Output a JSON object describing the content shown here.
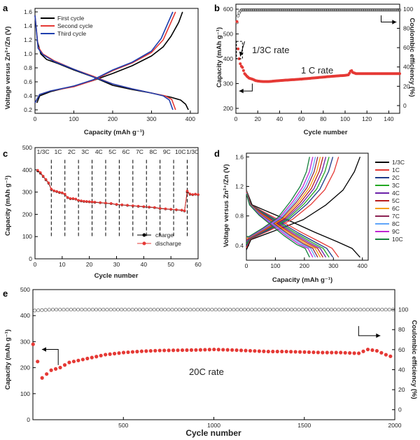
{
  "chart_data": [
    {
      "id": "a",
      "panel_letter": "a",
      "type": "line",
      "xlabel": "Capacity (mAh g⁻¹)",
      "ylabel": "Voltage versus Zn²⁺/Zn (V)",
      "xlim": [
        0,
        420
      ],
      "ylim": [
        0.15,
        1.65
      ],
      "xticks": [
        0,
        100,
        200,
        300,
        400
      ],
      "yticks": [
        0.2,
        0.4,
        0.6,
        0.8,
        1.0,
        1.2,
        1.4,
        1.6
      ],
      "ytick_labels": [
        "0.2",
        "0.4",
        "0.6",
        "0.8",
        "1.0",
        "1.2",
        "1.4",
        "1.6"
      ],
      "legend_position": "top-left",
      "series": [
        {
          "name": "First cycle",
          "color": "#000000",
          "charge": [
            [
              5,
              0.3
            ],
            [
              12,
              0.4
            ],
            [
              40,
              0.46
            ],
            [
              100,
              0.54
            ],
            [
              150,
              0.62
            ],
            [
              200,
              0.72
            ],
            [
              250,
              0.83
            ],
            [
              300,
              0.97
            ],
            [
              330,
              1.1
            ],
            [
              350,
              1.25
            ],
            [
              370,
              1.45
            ],
            [
              380,
              1.6
            ]
          ],
          "discharge": [
            [
              5,
              1.2
            ],
            [
              15,
              1.0
            ],
            [
              30,
              0.92
            ],
            [
              60,
              0.86
            ],
            [
              100,
              0.77
            ],
            [
              150,
              0.67
            ],
            [
              200,
              0.55
            ],
            [
              250,
              0.49
            ],
            [
              300,
              0.44
            ],
            [
              350,
              0.38
            ],
            [
              375,
              0.34
            ],
            [
              388,
              0.28
            ],
            [
              395,
              0.2
            ]
          ]
        },
        {
          "name": "Second cycle",
          "color": "#e53935",
          "charge": [
            [
              0,
              0.3
            ],
            [
              12,
              0.42
            ],
            [
              40,
              0.47
            ],
            [
              100,
              0.53
            ],
            [
              150,
              0.62
            ],
            [
              200,
              0.76
            ],
            [
              250,
              0.87
            ],
            [
              300,
              1.02
            ],
            [
              330,
              1.2
            ],
            [
              350,
              1.45
            ],
            [
              362,
              1.6
            ]
          ],
          "discharge": [
            [
              0,
              1.55
            ],
            [
              8,
              1.1
            ],
            [
              20,
              1.0
            ],
            [
              50,
              0.9
            ],
            [
              100,
              0.78
            ],
            [
              150,
              0.68
            ],
            [
              200,
              0.57
            ],
            [
              250,
              0.5
            ],
            [
              300,
              0.44
            ],
            [
              335,
              0.4
            ],
            [
              352,
              0.35
            ],
            [
              362,
              0.2
            ]
          ]
        },
        {
          "name": "Third cycle",
          "color": "#1e40af",
          "charge": [
            [
              0,
              0.3
            ],
            [
              12,
              0.42
            ],
            [
              40,
              0.47
            ],
            [
              100,
              0.54
            ],
            [
              150,
              0.63
            ],
            [
              200,
              0.77
            ],
            [
              250,
              0.88
            ],
            [
              300,
              1.04
            ],
            [
              325,
              1.22
            ],
            [
              343,
              1.45
            ],
            [
              355,
              1.6
            ]
          ],
          "discharge": [
            [
              0,
              1.55
            ],
            [
              8,
              1.08
            ],
            [
              20,
              0.99
            ],
            [
              50,
              0.89
            ],
            [
              100,
              0.78
            ],
            [
              150,
              0.67
            ],
            [
              200,
              0.57
            ],
            [
              250,
              0.5
            ],
            [
              300,
              0.44
            ],
            [
              330,
              0.4
            ],
            [
              346,
              0.34
            ],
            [
              355,
              0.2
            ]
          ]
        }
      ]
    },
    {
      "id": "b",
      "panel_letter": "b",
      "type": "scatter",
      "xlabel": "Cycle number",
      "ylabel": "Capacity (mAh g⁻¹)",
      "y2label": "Coulombic efficiency (%)",
      "xlim": [
        0,
        150
      ],
      "ylim": [
        180,
        620
      ],
      "y2lim": [
        -8,
        105
      ],
      "xticks": [
        0,
        20,
        40,
        60,
        80,
        100,
        120,
        140
      ],
      "yticks": [
        200,
        300,
        400,
        500,
        600
      ],
      "y2ticks": [
        0,
        20,
        40,
        60,
        80,
        100
      ],
      "annotations": [
        "1/3C rate",
        "1 C rate"
      ],
      "series": [
        {
          "name": "capacity",
          "color": "#e53935",
          "x": [
            1,
            2,
            3,
            4,
            5,
            6,
            8,
            10,
            12,
            15,
            18,
            20,
            25,
            30,
            35,
            40,
            50,
            60,
            70,
            80,
            90,
            100,
            103,
            104,
            105,
            106,
            107,
            110,
            120,
            130,
            140,
            150
          ],
          "y": [
            550,
            440,
            400,
            380,
            370,
            365,
            340,
            330,
            322,
            318,
            312,
            310,
            308,
            308,
            310,
            312,
            315,
            318,
            322,
            326,
            330,
            333,
            335,
            342,
            350,
            352,
            345,
            340,
            340,
            340,
            340,
            340
          ]
        },
        {
          "name": "coulombic_efficiency",
          "color": "#444444",
          "x": [
            1,
            2,
            3,
            4,
            5,
            6,
            10,
            20,
            30,
            40,
            50,
            60,
            70,
            80,
            90,
            100,
            110,
            120,
            130,
            140,
            150
          ],
          "y": [
            86,
            93,
            96,
            98,
            99,
            99,
            99,
            99,
            99,
            99,
            99,
            99,
            99,
            99,
            99,
            99,
            99,
            99,
            99,
            99,
            99
          ]
        }
      ]
    },
    {
      "id": "c",
      "panel_letter": "c",
      "type": "line",
      "xlabel": "Cycle number",
      "ylabel": "Capacity (mAh g⁻¹)",
      "xlim": [
        0,
        60
      ],
      "ylim": [
        0,
        500
      ],
      "xticks": [
        0,
        10,
        20,
        30,
        40,
        50,
        60
      ],
      "yticks": [
        0,
        100,
        200,
        300,
        400,
        500
      ],
      "rate_labels": [
        "1/3C",
        "1C",
        "2C",
        "3C",
        "4C",
        "5C",
        "6C",
        "7C",
        "8C",
        "9C",
        "10C",
        "1/3C"
      ],
      "rate_boundaries": [
        6,
        11,
        16,
        21,
        26,
        31,
        36,
        41,
        46,
        51,
        56
      ],
      "legend_position": "bottom-right",
      "series": [
        {
          "name": "charge",
          "color": "#000000",
          "x": [
            1,
            2,
            3,
            4,
            5,
            6,
            7,
            8,
            9,
            10,
            11,
            12,
            13,
            14,
            15,
            16,
            17,
            18,
            19,
            20,
            21,
            22,
            24,
            26,
            28,
            30,
            32,
            34,
            36,
            38,
            40,
            42,
            44,
            46,
            48,
            50,
            52,
            54,
            55,
            56,
            57,
            58,
            59,
            60
          ],
          "y": [
            395,
            385,
            370,
            355,
            340,
            312,
            305,
            302,
            298,
            296,
            290,
            275,
            270,
            270,
            268,
            262,
            260,
            258,
            257,
            256,
            255,
            254,
            252,
            250,
            248,
            244,
            242,
            240,
            238,
            236,
            234,
            232,
            230,
            226,
            224,
            222,
            220,
            218,
            215,
            300,
            290,
            288,
            290,
            288
          ]
        },
        {
          "name": "discharge",
          "color": "#e53935",
          "x": [
            1,
            2,
            3,
            4,
            5,
            6,
            7,
            8,
            9,
            10,
            11,
            12,
            13,
            14,
            15,
            16,
            17,
            18,
            19,
            20,
            21,
            22,
            24,
            26,
            28,
            30,
            32,
            34,
            36,
            38,
            40,
            42,
            44,
            46,
            48,
            50,
            52,
            54,
            55,
            56,
            57,
            58,
            59,
            60
          ],
          "y": [
            398,
            388,
            372,
            357,
            342,
            314,
            306,
            303,
            299,
            297,
            291,
            276,
            271,
            271,
            269,
            263,
            261,
            259,
            258,
            257,
            256,
            255,
            253,
            251,
            249,
            245,
            243,
            241,
            239,
            237,
            235,
            233,
            231,
            227,
            225,
            223,
            221,
            219,
            216,
            305,
            292,
            289,
            291,
            289
          ]
        }
      ]
    },
    {
      "id": "d",
      "panel_letter": "d",
      "type": "line",
      "xlabel": "Capacity (mAh g⁻¹)",
      "ylabel": "Voltage versus Zn²⁺/Zn (V)",
      "xlim": [
        0,
        420
      ],
      "ylim": [
        0.2,
        1.65
      ],
      "xticks": [
        0,
        100,
        200,
        300,
        400
      ],
      "yticks": [
        0.4,
        0.8,
        1.2,
        1.6
      ],
      "ytick_labels": [
        "0.4",
        "0.8",
        "1.2",
        "1.6"
      ],
      "legend_position": "top-right",
      "series": [
        {
          "name": "1/3C",
          "color": "#000000",
          "cap": 392
        },
        {
          "name": "1C",
          "color": "#e53935",
          "cap": 318
        },
        {
          "name": "2C",
          "color": "#1e3a8a",
          "cap": 298
        },
        {
          "name": "3C",
          "color": "#22a822",
          "cap": 285
        },
        {
          "name": "4C",
          "color": "#6b21a8",
          "cap": 274
        },
        {
          "name": "5C",
          "color": "#b91c1c",
          "cap": 264
        },
        {
          "name": "6C",
          "color": "#f59e0b",
          "cap": 255
        },
        {
          "name": "7C",
          "color": "#8b2252",
          "cap": 246
        },
        {
          "name": "8C",
          "color": "#60a5fa",
          "cap": 238
        },
        {
          "name": "9C",
          "color": "#c026d3",
          "cap": 229
        },
        {
          "name": "10C",
          "color": "#15803d",
          "cap": 218
        }
      ]
    },
    {
      "id": "e",
      "panel_letter": "e",
      "type": "scatter",
      "xlabel": "Cycle number",
      "ylabel": "Capacity (mAh g⁻¹)",
      "y2label": "Coulombic efficiency (%)",
      "xlim": [
        0,
        2000
      ],
      "ylim": [
        0,
        500
      ],
      "y2lim": [
        -10,
        120
      ],
      "xticks": [
        500,
        1000,
        1500,
        2000
      ],
      "yticks": [
        0,
        100,
        200,
        300,
        400,
        500
      ],
      "y2ticks": [
        0,
        20,
        40,
        60,
        80,
        100
      ],
      "annotations": [
        "20C rate"
      ],
      "series": [
        {
          "name": "capacity",
          "color": "#e53935",
          "x": [
            1,
            50,
            100,
            150,
            200,
            300,
            400,
            500,
            600,
            700,
            800,
            900,
            1000,
            1100,
            1200,
            1300,
            1400,
            1500,
            1600,
            1700,
            1800,
            1850,
            1900,
            1950,
            2000
          ],
          "y": [
            290,
            160,
            190,
            200,
            220,
            235,
            250,
            258,
            263,
            266,
            267,
            268,
            270,
            268,
            265,
            262,
            262,
            260,
            258,
            258,
            255,
            270,
            265,
            250,
            238
          ]
        },
        {
          "name": "coulombic_efficiency",
          "color": "#555555",
          "x": [
            1,
            100,
            200,
            300,
            400,
            500,
            600,
            700,
            800,
            900,
            1000,
            1100,
            1200,
            1300,
            1400,
            1500,
            1600,
            1700,
            1800,
            1900,
            2000
          ],
          "y": [
            99,
            100,
            100,
            100,
            100,
            100,
            100,
            100,
            100,
            100,
            100,
            100,
            100,
            100,
            100,
            100,
            100,
            100,
            100,
            100,
            100
          ]
        }
      ]
    }
  ]
}
